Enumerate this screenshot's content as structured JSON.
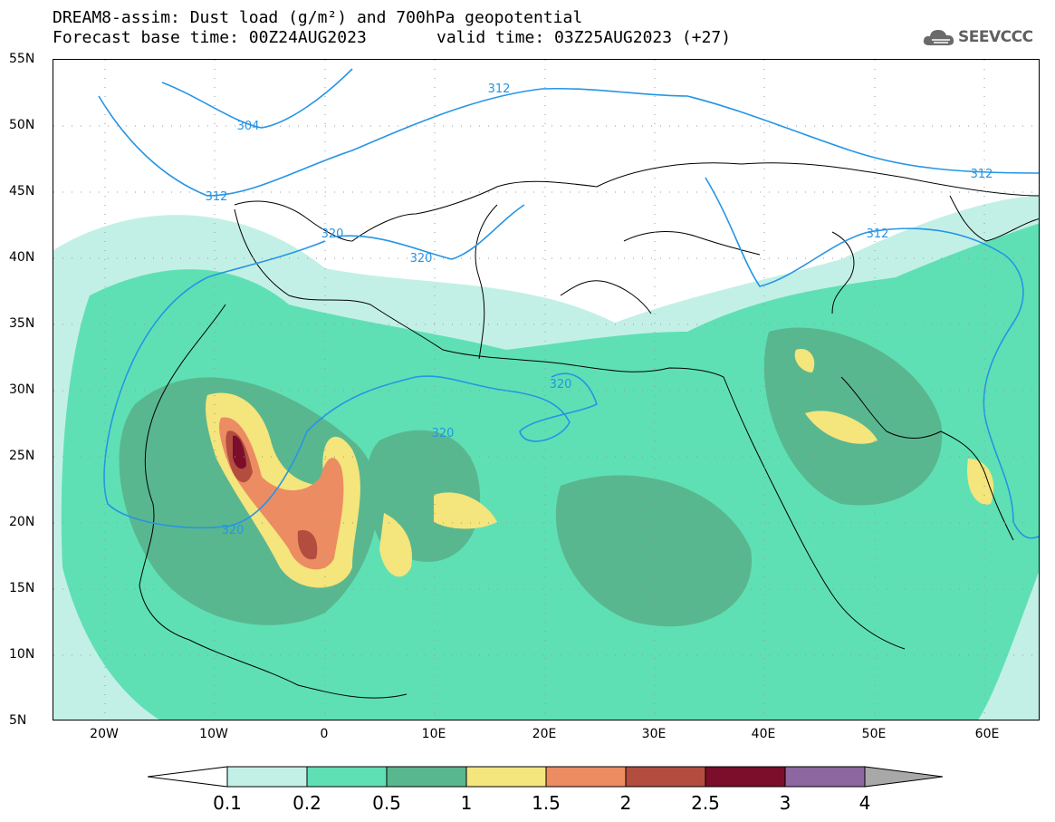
{
  "header": {
    "title": "DREAM8-assim: Dust load (g/m²) and 700hPa geopotential",
    "base_time": "Forecast base time: 00Z24AUG2023",
    "valid_time": "valid time: 03Z25AUG2023 (+27)"
  },
  "logo": {
    "text": "SEEVCCC",
    "icon": "cloud-icon"
  },
  "axes": {
    "lat_labels": [
      "55N",
      "50N",
      "45N",
      "40N",
      "35N",
      "30N",
      "25N",
      "20N",
      "15N",
      "10N",
      "5N"
    ],
    "lon_labels": [
      "20W",
      "10W",
      "0",
      "10E",
      "20E",
      "30E",
      "40E",
      "50E",
      "60E"
    ]
  },
  "contour_labels": [
    "304",
    "312",
    "312",
    "312",
    "320",
    "320",
    "320",
    "320",
    "320",
    "312"
  ],
  "colorbar": {
    "labels": [
      "0.1",
      "0.2",
      "0.5",
      "1",
      "1.5",
      "2",
      "2.5",
      "3",
      "4"
    ],
    "colors": [
      "#c3f0e6",
      "#5fe0b4",
      "#59b78f",
      "#f4e57c",
      "#ec8c62",
      "#b24d3f",
      "#7b0e2a",
      "#8c67a0",
      "#a8a8a8"
    ]
  }
}
